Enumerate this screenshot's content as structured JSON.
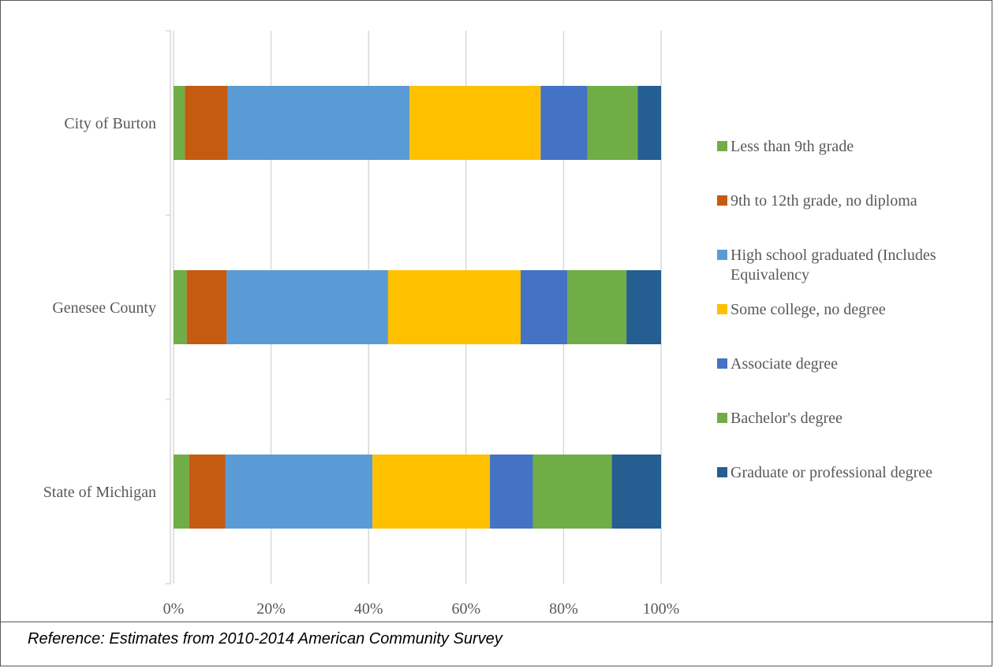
{
  "chart_data": {
    "type": "bar",
    "orientation": "horizontal",
    "stacked": "percent",
    "categories": [
      "City of Burton",
      "Genesee County",
      "State of Michigan"
    ],
    "series": [
      {
        "name": "Less than 9th grade",
        "color": "#70AD47",
        "values": [
          2.3,
          2.7,
          3.2
        ]
      },
      {
        "name": "9th to 12th grade, no diploma",
        "color": "#C55A11",
        "values": [
          8.8,
          8.2,
          7.4
        ]
      },
      {
        "name": "High school graduated (Includes Equivalency",
        "color": "#5B9BD5",
        "values": [
          37.3,
          33.1,
          30.2
        ]
      },
      {
        "name": "Some college, no degree",
        "color": "#FFC000",
        "values": [
          26.9,
          27.2,
          24.1
        ]
      },
      {
        "name": "Associate degree",
        "color": "#4472C4",
        "values": [
          9.6,
          9.6,
          8.8
        ]
      },
      {
        "name": "Bachelor's degree",
        "color": "#70AD47",
        "values": [
          10.3,
          12.1,
          16.2
        ]
      },
      {
        "name": "Graduate or professional degree",
        "color": "#255E91",
        "values": [
          4.8,
          7.1,
          10.1
        ]
      }
    ],
    "x_ticks": [
      "0%",
      "20%",
      "40%",
      "60%",
      "80%",
      "100%"
    ],
    "xlim": [
      0,
      100
    ],
    "grid": true,
    "legend_position": "right"
  },
  "reference": "Reference:  Estimates from 2010-2014 American Community Survey"
}
